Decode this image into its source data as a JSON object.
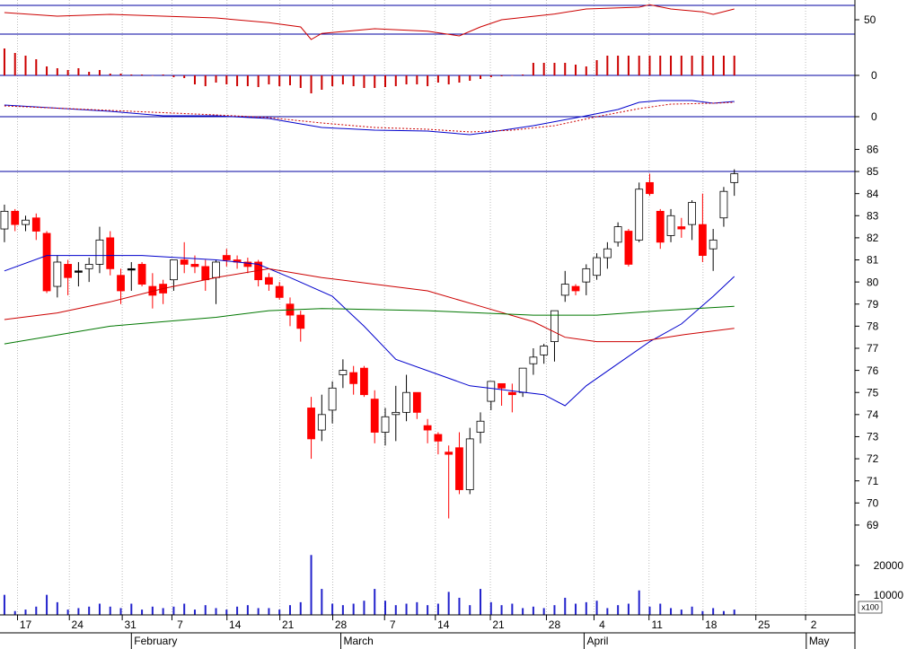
{
  "chart_data": [
    {
      "type": "line",
      "ylim": [
        30,
        77.5
      ],
      "yticks": [
        50
      ],
      "levels": [
        70,
        30
      ],
      "level_color": "#0000a0",
      "series": [
        {
          "color": "#cc0000",
          "x": [
            0,
            5,
            10,
            15,
            20,
            25,
            28,
            29,
            30,
            35,
            40,
            43,
            45,
            47,
            52,
            55,
            60,
            61,
            63,
            66,
            67,
            69
          ],
          "values": [
            60,
            55,
            57.5,
            55,
            52.5,
            46,
            40,
            22.5,
            31,
            37.5,
            34,
            27.5,
            40,
            50,
            58,
            65,
            67.5,
            71,
            65,
            61,
            57.5,
            65
          ]
        }
      ]
    },
    {
      "type": "bar",
      "ylim": [
        -20,
        46
      ],
      "yticks": [
        0
      ],
      "color": "#cc0000",
      "zero_color": "#0000a0",
      "values": [
        30,
        25,
        22,
        18,
        10,
        8,
        6,
        8,
        4,
        6,
        2,
        2,
        1,
        1,
        0,
        1,
        -2,
        -3,
        -10,
        -12,
        -8,
        -10,
        -12,
        -12,
        -13,
        -10,
        -12,
        -11,
        -14,
        -20,
        -16,
        -12,
        -10,
        -12,
        -14,
        -14,
        -13,
        -12,
        -10,
        -10,
        -12,
        -8,
        -10,
        -8,
        -6,
        -4,
        -2,
        -1,
        0,
        1,
        14,
        14,
        14,
        14,
        12,
        10,
        17,
        22,
        22,
        22,
        22,
        22,
        22,
        22,
        22,
        22,
        22,
        22,
        22,
        22
      ]
    },
    {
      "type": "line",
      "ylim": [
        -61,
        46
      ],
      "yticks": [
        0
      ],
      "zero_color": "#0000a0",
      "series": [
        {
          "color": "#0000cc",
          "x": [
            0,
            10,
            15,
            20,
            25,
            30,
            35,
            40,
            44,
            46,
            50,
            55,
            58,
            60,
            62,
            65,
            67,
            69
          ],
          "values": [
            13,
            6,
            1,
            1,
            -2,
            -12,
            -15,
            -16,
            -20,
            -17,
            -10,
            1,
            8,
            16,
            18,
            18,
            15,
            17
          ]
        },
        {
          "color": "#cc0000",
          "dashed": true,
          "x": [
            0,
            10,
            20,
            25,
            30,
            35,
            40,
            44,
            48,
            52,
            56,
            60,
            63,
            67,
            69
          ],
          "values": [
            12,
            7,
            2,
            -1,
            -7,
            -12,
            -14,
            -17,
            -15,
            -10,
            0,
            9,
            14,
            15,
            16
          ]
        }
      ]
    },
    {
      "type": "candlestick",
      "ylim": [
        67.9,
        87.48
      ],
      "yticks": [
        69,
        70,
        71,
        72,
        73,
        74,
        75,
        76,
        77,
        78,
        79,
        80,
        81,
        82,
        83,
        84,
        85,
        86
      ],
      "up_color": "#ffffff",
      "down_color": "#ff0000",
      "flat_color": "#000000",
      "levels": [
        85
      ],
      "level_color": "#0000a0",
      "x": [
        0,
        1,
        2,
        3,
        4,
        5,
        6,
        7,
        8,
        9,
        10,
        11,
        12,
        13,
        14,
        15,
        16,
        17,
        18,
        19,
        20,
        21,
        22,
        23,
        24,
        25,
        26,
        27,
        28,
        29,
        30,
        31,
        32,
        33,
        34,
        35,
        36,
        37,
        38,
        39,
        40,
        41,
        42,
        43,
        44,
        45,
        46,
        47,
        48,
        49,
        50,
        51,
        52,
        53,
        54,
        55,
        56,
        57,
        58,
        59,
        60,
        61,
        62,
        63,
        64,
        65,
        66,
        67,
        68,
        69
      ],
      "open": [
        82.4,
        83.2,
        82.6,
        82.9,
        82.2,
        79.8,
        80.8,
        80.5,
        80.6,
        80.8,
        82.0,
        80.3,
        80.6,
        80.8,
        79.8,
        79.9,
        80.1,
        81.0,
        80.8,
        80.7,
        80.2,
        81.2,
        81.0,
        80.9,
        80.9,
        80.2,
        79.8,
        79.0,
        78.5,
        74.3,
        73.3,
        74.2,
        75.8,
        75.9,
        76.1,
        74.7,
        73.2,
        74.0,
        74.1,
        75.0,
        73.5,
        73.1,
        72.3,
        72.5,
        70.6,
        73.2,
        74.6,
        75.4,
        75.0,
        75.0,
        76.3,
        76.7,
        77.3,
        79.4,
        79.8,
        80.0,
        80.3,
        81.1,
        81.8,
        82.3,
        81.9,
        84.5,
        83.2,
        82.1,
        82.5,
        82.6,
        82.6,
        81.5,
        82.9,
        84.5
      ],
      "high": [
        83.5,
        83.3,
        83.0,
        83.1,
        82.3,
        81.2,
        81.0,
        80.9,
        81.1,
        82.5,
        82.3,
        80.6,
        80.9,
        80.9,
        80.4,
        80.1,
        81.0,
        81.8,
        81.2,
        81.0,
        81.0,
        81.5,
        81.2,
        81.1,
        81.0,
        80.4,
        80.0,
        79.3,
        78.7,
        74.8,
        74.9,
        75.5,
        76.5,
        76.2,
        76.2,
        75.1,
        74.3,
        75.3,
        75.8,
        75.0,
        73.8,
        73.2,
        72.6,
        73.2,
        73.4,
        74.1,
        75.4,
        75.4,
        75.4,
        76.1,
        77.0,
        77.2,
        78.7,
        80.5,
        79.9,
        80.8,
        81.3,
        81.8,
        82.7,
        82.4,
        84.5,
        84.9,
        83.3,
        83.3,
        82.9,
        83.7,
        84.0,
        82.4,
        84.3,
        85.1
      ],
      "low": [
        81.8,
        82.3,
        82.3,
        81.9,
        79.5,
        79.3,
        79.4,
        79.8,
        80.0,
        80.4,
        80.3,
        79.0,
        79.6,
        79.8,
        78.8,
        79.0,
        79.6,
        80.4,
        80.4,
        79.6,
        79.0,
        80.7,
        80.6,
        80.4,
        79.8,
        79.6,
        79.2,
        78.0,
        77.3,
        72.0,
        72.8,
        73.6,
        75.2,
        74.9,
        74.8,
        72.7,
        72.6,
        72.8,
        73.7,
        73.8,
        72.7,
        72.2,
        69.3,
        70.4,
        70.4,
        72.7,
        74.2,
        74.4,
        74.1,
        74.8,
        75.8,
        76.3,
        76.4,
        79.1,
        79.4,
        79.4,
        80.1,
        80.6,
        81.6,
        80.7,
        81.8,
        83.9,
        81.5,
        81.8,
        82.0,
        81.9,
        80.9,
        80.5,
        82.5,
        83.9
      ],
      "close": [
        83.2,
        82.6,
        82.8,
        82.3,
        79.6,
        80.9,
        80.2,
        80.5,
        80.8,
        81.9,
        80.6,
        79.6,
        80.6,
        79.9,
        79.4,
        79.5,
        81.0,
        80.8,
        80.7,
        80.1,
        80.9,
        81.0,
        80.9,
        80.7,
        80.1,
        79.9,
        79.3,
        78.5,
        77.9,
        72.9,
        74.0,
        75.2,
        76.0,
        75.4,
        74.9,
        73.2,
        73.9,
        74.1,
        75.0,
        74.1,
        73.3,
        72.8,
        72.2,
        70.6,
        72.9,
        73.7,
        75.5,
        75.2,
        74.9,
        76.1,
        76.6,
        77.1,
        78.7,
        79.9,
        79.6,
        80.6,
        81.1,
        81.5,
        82.5,
        80.8,
        84.2,
        84.0,
        81.8,
        83.0,
        82.4,
        83.6,
        81.2,
        81.9,
        84.1,
        84.9
      ],
      "series": [
        {
          "color": "#0000cc",
          "x": [
            0,
            4,
            13,
            20,
            24,
            27,
            31,
            34,
            37,
            44,
            51,
            53,
            55,
            58,
            61,
            64,
            67,
            69
          ],
          "values": [
            80.5,
            81.2,
            81.2,
            81.0,
            80.8,
            80.2,
            79.35,
            78.0,
            76.5,
            75.3,
            74.9,
            74.4,
            75.3,
            76.3,
            77.3,
            78.1,
            79.35,
            80.25
          ]
        },
        {
          "color": "#cc0000",
          "x": [
            0,
            5,
            10,
            15,
            20,
            25,
            30,
            35,
            40,
            45,
            50,
            53,
            56,
            60,
            64,
            69
          ],
          "values": [
            78.3,
            78.6,
            79.1,
            79.7,
            80.2,
            80.6,
            80.2,
            79.9,
            79.6,
            78.9,
            78.2,
            77.5,
            77.3,
            77.3,
            77.6,
            77.9
          ]
        },
        {
          "color": "#007700",
          "x": [
            0,
            5,
            10,
            15,
            20,
            25,
            30,
            40,
            45,
            50,
            56,
            62,
            69
          ],
          "values": [
            77.2,
            77.6,
            78.0,
            78.2,
            78.4,
            78.7,
            78.8,
            78.7,
            78.6,
            78.5,
            78.5,
            78.7,
            78.9
          ]
        }
      ]
    },
    {
      "type": "bar",
      "ylim": [
        3200,
        24500
      ],
      "yticks": [
        10000,
        20000
      ],
      "unit_label": "x100",
      "color": "#2222cc",
      "values": [
        10000,
        4500,
        5000,
        6000,
        10000,
        7500,
        5000,
        5500,
        6000,
        7000,
        6000,
        5500,
        7000,
        5000,
        6000,
        5500,
        6000,
        7000,
        5000,
        6500,
        5500,
        5000,
        6000,
        6500,
        5500,
        5500,
        5000,
        6500,
        7500,
        23500,
        12000,
        7000,
        6500,
        7000,
        8000,
        12000,
        8000,
        6500,
        7000,
        7500,
        6500,
        7000,
        11000,
        9000,
        6500,
        12000,
        7500,
        6500,
        7000,
        5500,
        6000,
        5500,
        6500,
        9000,
        7000,
        7500,
        8000,
        5500,
        6500,
        7000,
        11500,
        6000,
        7000,
        5500,
        5000,
        6000,
        4500,
        5500,
        4500,
        5000
      ],
      "xlim": [
        -0.42,
        80.4
      ],
      "xticks": [
        {
          "value": 2.0,
          "label": "17"
        },
        {
          "value": 6.9,
          "label": "24"
        },
        {
          "value": 11.9,
          "label": "31"
        },
        {
          "value": 16.6,
          "label": "7"
        },
        {
          "value": 21.8,
          "label": "14"
        },
        {
          "value": 26.8,
          "label": "21"
        },
        {
          "value": 31.8,
          "label": "28"
        },
        {
          "value": 36.7,
          "label": "7"
        },
        {
          "value": 41.5,
          "label": "14"
        },
        {
          "value": 46.7,
          "label": "21"
        },
        {
          "value": 52.0,
          "label": "28"
        },
        {
          "value": 56.5,
          "label": "4"
        },
        {
          "value": 61.7,
          "label": "11"
        },
        {
          "value": 66.8,
          "label": "18"
        },
        {
          "value": 71.8,
          "label": "25"
        },
        {
          "value": 76.5,
          "label": "2"
        }
      ],
      "month_ticks": [
        {
          "value": 12.0,
          "label": "February"
        },
        {
          "value": 31.8,
          "label": "March"
        },
        {
          "value": 54.8,
          "label": "April"
        },
        {
          "value": 75.8,
          "label": "May"
        }
      ],
      "grid": true
    }
  ]
}
